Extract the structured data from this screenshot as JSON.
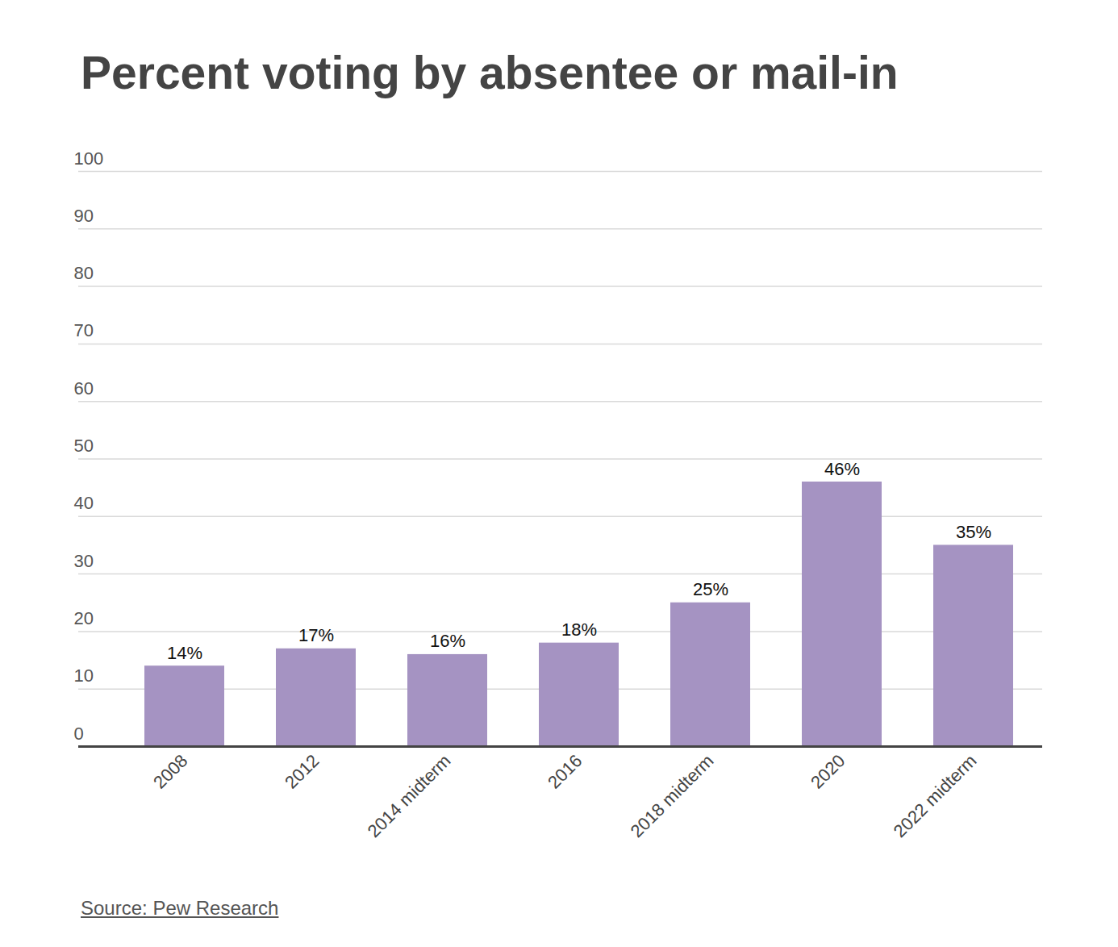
{
  "chart_data": {
    "type": "bar",
    "title": "Percent voting by absentee or mail-in",
    "categories": [
      "2008",
      "2012",
      "2014 midterm",
      "2016",
      "2018 midterm",
      "2020",
      "2022 midterm"
    ],
    "values": [
      14,
      17,
      16,
      18,
      25,
      46,
      35
    ],
    "value_labels": [
      "14%",
      "17%",
      "16%",
      "18%",
      "25%",
      "46%",
      "35%"
    ],
    "color": "#a593c2",
    "ylim": [
      0,
      100
    ],
    "yticks": [
      0,
      10,
      20,
      30,
      40,
      50,
      60,
      70,
      80,
      90,
      100
    ],
    "grid": true,
    "data_labels": true,
    "source": "Source: Pew Research"
  }
}
